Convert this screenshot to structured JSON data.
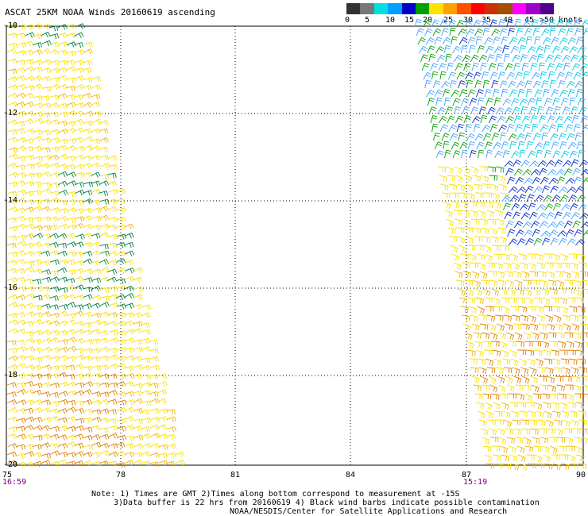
{
  "title": "ASCAT 25KM NOAA Winds 20160619 ascending",
  "legend": {
    "labels": [
      "0",
      "5",
      "10",
      "15",
      "20",
      "25",
      "30",
      "35",
      "40",
      "45",
      ">50 knots"
    ],
    "colors": [
      "#333333",
      "#777777",
      "#00e0e0",
      "#00a0ff",
      "#0000c8",
      "#00a000",
      "#ffe000",
      "#ffa000",
      "#ff5000",
      "#ff0000",
      "#c83200",
      "#a05000",
      "#ff00ff",
      "#a000c8",
      "#50008c"
    ]
  },
  "axes": {
    "lat_labels": [
      "-10",
      "-12",
      "-14",
      "-16",
      "-18",
      "-20"
    ],
    "lon_labels": [
      "75",
      "78",
      "81",
      "84",
      "87",
      "90"
    ],
    "time_left": "16:59",
    "time_right": "15:19"
  },
  "notes": {
    "line1": "Note: 1) Times are GMT 2)Times along bottom correspond to measurement at -15S",
    "line2": "3)Data buffer is 22 hrs from 20160619 4) Black wind barbs indicate possible contamination",
    "line3": "NOAA/NESDIS/Center for Satellite Applications and Research"
  },
  "swath_colors": {
    "yellow": "#f8e000",
    "gold": "#f0b400",
    "orange": "#e08000",
    "green": "#00a000",
    "darkgreen": "#008040",
    "cyan": "#00c8e0",
    "lightblue": "#40a0ff",
    "blue": "#0028c8"
  }
}
